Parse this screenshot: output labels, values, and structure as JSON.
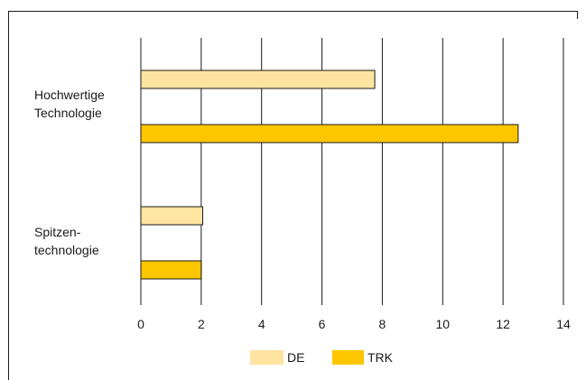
{
  "chart_data": {
    "type": "bar",
    "orientation": "horizontal",
    "categories": [
      [
        "Hochwertige",
        "Technologie"
      ],
      [
        "Spitzen-",
        "technologie"
      ]
    ],
    "series": [
      {
        "name": "DE",
        "values": [
          7.75,
          2.05
        ],
        "color": "#fde4a0"
      },
      {
        "name": "TRK",
        "values": [
          12.5,
          2.0
        ],
        "color": "#fdc600"
      }
    ],
    "xlim": [
      0,
      14
    ],
    "xticks": [
      0,
      2,
      4,
      6,
      8,
      10,
      12,
      14
    ],
    "grid": "vertical",
    "legend": "bottom"
  }
}
